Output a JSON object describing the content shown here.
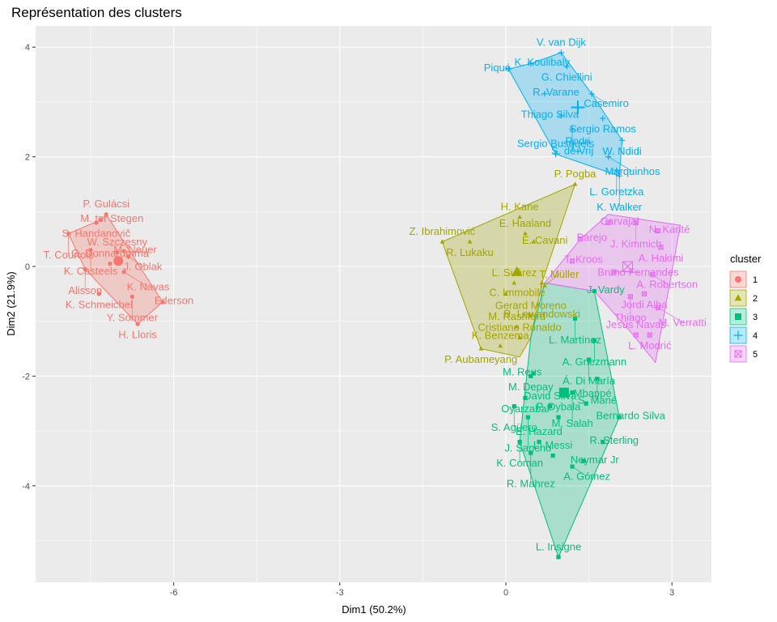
{
  "chart_data": {
    "type": "scatter",
    "title": "Représentation des clusters",
    "xlabel": "Dim1 (50.2%)",
    "ylabel": "Dim2 (21.9%)",
    "xlim": [
      -8.3,
      3.7
    ],
    "ylim": [
      -5.8,
      4.5
    ],
    "x_ticks": [
      -6,
      -3,
      0,
      3
    ],
    "x_tick_labels": [
      "-6",
      "-3",
      "0",
      "3"
    ],
    "y_ticks": [
      -4,
      -2,
      0,
      2,
      4
    ],
    "y_tick_labels": [
      "-4",
      "-2",
      "0",
      "2",
      "4"
    ],
    "grid": true,
    "legend_position": "right",
    "legend_title": "cluster",
    "clusters": [
      {
        "name": "1",
        "color": "#F8766D",
        "marker": "circle",
        "centroid": [
          -7.0,
          0.1
        ],
        "points": [
          {
            "label": "P. Gulácsi",
            "x": -7.22,
            "y": 0.95
          },
          {
            "label": "M. ter Stegen",
            "x": -7.32,
            "y": 0.85
          },
          {
            "label": "S. Handanovič",
            "x": -7.4,
            "y": 0.8
          },
          {
            "label": "T. Courtois",
            "x": -7.9,
            "y": 0.6
          },
          {
            "label": "M. Neuer",
            "x": -6.9,
            "y": 0.28
          },
          {
            "label": "K. Casteels",
            "x": -7.5,
            "y": 0.3
          },
          {
            "label": "W. Szczęsny",
            "x": -7.02,
            "y": 0.26
          },
          {
            "label": "J. Oblak",
            "x": -6.82,
            "y": 0.18
          },
          {
            "label": "Alisson",
            "x": -7.6,
            "y": -0.05
          },
          {
            "label": "G. Donnarumma",
            "x": -7.15,
            "y": 0.05
          },
          {
            "label": "K. Navas",
            "x": -6.9,
            "y": -0.1
          },
          {
            "label": "K. Schmeichel",
            "x": -7.35,
            "y": -0.5
          },
          {
            "label": "Ederson",
            "x": -6.2,
            "y": -0.65
          },
          {
            "label": "Y. Sommer",
            "x": -6.75,
            "y": -0.55
          },
          {
            "label": "H. Lloris",
            "x": -6.65,
            "y": -1.05
          }
        ],
        "hull": [
          [
            -7.22,
            0.95
          ],
          [
            -6.2,
            -0.65
          ],
          [
            -6.65,
            -1.05
          ],
          [
            -7.6,
            -0.05
          ],
          [
            -7.9,
            0.6
          ],
          [
            -7.32,
            0.85
          ]
        ]
      },
      {
        "name": "2",
        "color": "#A3A500",
        "marker": "triangle",
        "centroid": [
          0.2,
          -0.1
        ],
        "points": [
          {
            "label": "P. Pogba",
            "x": 1.25,
            "y": 1.5
          },
          {
            "label": "H. Kane",
            "x": 0.25,
            "y": 0.9
          },
          {
            "label": "E. Haaland",
            "x": 0.35,
            "y": 0.6
          },
          {
            "label": "Z. Ibrahimović",
            "x": -1.15,
            "y": 0.45
          },
          {
            "label": "R. Lukaku",
            "x": -0.65,
            "y": 0.45
          },
          {
            "label": "E. Cavani",
            "x": 0.5,
            "y": 0.45
          },
          {
            "label": "L. Suárez",
            "x": 0.15,
            "y": -0.3
          },
          {
            "label": "C. Immobile",
            "x": 0.0,
            "y": -0.5
          },
          {
            "label": "R. Lewandowski",
            "x": 0.65,
            "y": -0.3
          },
          {
            "label": "T. Müller",
            "x": 0.7,
            "y": -0.35
          },
          {
            "label": "K. Benzema",
            "x": -0.1,
            "y": -1.45
          },
          {
            "label": "P. Aubameyang",
            "x": -0.45,
            "y": -1.5
          },
          {
            "label": "Cristiano Ronaldo",
            "x": 0.25,
            "y": -1.3
          },
          {
            "label": "M. Rashford",
            "x": 0.2,
            "y": -1.1
          },
          {
            "label": "Gerard Moreno",
            "x": 0.45,
            "y": -0.9
          }
        ],
        "hull": [
          [
            1.25,
            1.5
          ],
          [
            0.65,
            -0.3
          ],
          [
            0.45,
            -1.3
          ],
          [
            0.25,
            -1.65
          ],
          [
            -0.45,
            -1.5
          ],
          [
            -1.15,
            0.45
          ]
        ]
      },
      {
        "name": "3",
        "color": "#00BF7D",
        "marker": "square",
        "centroid": [
          1.05,
          -2.3
        ],
        "points": [
          {
            "label": "J. Vardy",
            "x": 1.6,
            "y": -0.45
          },
          {
            "label": "L. Martínez",
            "x": 1.25,
            "y": -0.95
          },
          {
            "label": "A. Griezmann",
            "x": 1.6,
            "y": -1.35
          },
          {
            "label": "Á. Di María",
            "x": 1.5,
            "y": -1.7
          },
          {
            "label": "M. Reus",
            "x": 0.5,
            "y": -1.95
          },
          {
            "label": "S. Mané",
            "x": 1.65,
            "y": -2.05
          },
          {
            "label": "M. Depay",
            "x": 0.45,
            "y": -2.0
          },
          {
            "label": "Oyarzabal",
            "x": 0.35,
            "y": -2.4
          },
          {
            "label": "M. Salah",
            "x": 1.2,
            "y": -2.3
          },
          {
            "label": "S. Agüero",
            "x": 0.15,
            "y": -2.55
          },
          {
            "label": "David Silva",
            "x": 0.8,
            "y": -2.55
          },
          {
            "label": "K. Mbappé",
            "x": 1.45,
            "y": -2.5
          },
          {
            "label": "Bernardo Silva",
            "x": 2.05,
            "y": -2.75
          },
          {
            "label": "J. Sancho",
            "x": 0.4,
            "y": -2.75
          },
          {
            "label": "P. Dybala",
            "x": 0.95,
            "y": -2.75
          },
          {
            "label": "R. Sterling",
            "x": 1.75,
            "y": -3.2
          },
          {
            "label": "K. Coman",
            "x": 0.25,
            "y": -3.2
          },
          {
            "label": "E. Hazard",
            "x": 0.6,
            "y": -3.2
          },
          {
            "label": "R. Mahrez",
            "x": 0.45,
            "y": -3.4
          },
          {
            "label": "Neymar Jr",
            "x": 1.4,
            "y": -3.55
          },
          {
            "label": "L. Messi",
            "x": 0.85,
            "y": -3.45
          },
          {
            "label": "A. Gómez",
            "x": 1.2,
            "y": -3.65
          },
          {
            "label": "L. Insigne",
            "x": 0.95,
            "y": -5.3
          }
        ],
        "hull": [
          [
            0.7,
            -0.3
          ],
          [
            1.6,
            -0.45
          ],
          [
            2.05,
            -2.75
          ],
          [
            0.95,
            -5.3
          ],
          [
            0.25,
            -3.2
          ],
          [
            0.45,
            -1.3
          ]
        ]
      },
      {
        "name": "4",
        "color": "#00B0F6",
        "marker": "cross",
        "centroid": [
          1.3,
          2.9
        ],
        "points": [
          {
            "label": "V. van Dijk",
            "x": 1.0,
            "y": 3.9
          },
          {
            "label": "K. Koulibaly",
            "x": 0.45,
            "y": 3.7
          },
          {
            "label": "G. Chiellini",
            "x": 1.1,
            "y": 3.65
          },
          {
            "label": "Piqué",
            "x": 0.05,
            "y": 3.6
          },
          {
            "label": "R. Varane",
            "x": 0.7,
            "y": 3.15
          },
          {
            "label": "Casemiro",
            "x": 1.55,
            "y": 3.15
          },
          {
            "label": "Thiago Silva",
            "x": 1.0,
            "y": 2.75
          },
          {
            "label": "Sergio Ramos",
            "x": 1.75,
            "y": 2.7
          },
          {
            "label": "S. de Vrij",
            "x": 1.2,
            "y": 2.5
          },
          {
            "label": "W. Ndidi",
            "x": 2.1,
            "y": 2.3
          },
          {
            "label": "Sergio Busquets",
            "x": 0.9,
            "y": 2.05
          },
          {
            "label": "Rodri",
            "x": 1.3,
            "y": 2.1
          },
          {
            "label": "Marquinhos",
            "x": 1.85,
            "y": 2.0
          },
          {
            "label": "L. Goretzka",
            "x": 2.0,
            "y": 1.75
          },
          {
            "label": "K. Walker",
            "x": 2.05,
            "y": 1.65
          }
        ],
        "hull": [
          [
            1.0,
            3.9
          ],
          [
            1.55,
            3.15
          ],
          [
            2.1,
            2.3
          ],
          [
            2.05,
            1.65
          ],
          [
            0.9,
            2.05
          ],
          [
            0.05,
            3.6
          ],
          [
            0.45,
            3.7
          ]
        ]
      },
      {
        "name": "5",
        "color": "#E76BF3",
        "marker": "square-x",
        "centroid": [
          2.2,
          0.0
        ],
        "points": [
          {
            "label": "Carvajal",
            "x": 1.85,
            "y": 0.8
          },
          {
            "label": "J. Kimmich",
            "x": 2.35,
            "y": 0.8
          },
          {
            "label": "N. Kanté",
            "x": 2.75,
            "y": 0.65
          },
          {
            "label": "Parejo",
            "x": 1.35,
            "y": 0.5
          },
          {
            "label": "A. Hakimi",
            "x": 2.8,
            "y": 0.35
          },
          {
            "label": "T. Kroos",
            "x": 1.2,
            "y": 0.1
          },
          {
            "label": "Bruno Fernandes",
            "x": 1.95,
            "y": -0.1
          },
          {
            "label": "A. Robertson",
            "x": 2.65,
            "y": -0.15
          },
          {
            "label": "Jordi Alba",
            "x": 2.5,
            "y": -0.5
          },
          {
            "label": "Thiago",
            "x": 2.25,
            "y": -0.55
          },
          {
            "label": "M. Verratti",
            "x": 2.75,
            "y": -0.75
          },
          {
            "label": "L. Modrić",
            "x": 2.6,
            "y": -1.25
          },
          {
            "label": "Jesús Navas",
            "x": 2.35,
            "y": -1.25
          }
        ],
        "hull": [
          [
            1.35,
            0.5
          ],
          [
            1.85,
            0.95
          ],
          [
            3.15,
            0.75
          ],
          [
            2.7,
            -1.75
          ],
          [
            2.3,
            -1.25
          ],
          [
            1.6,
            -0.45
          ],
          [
            0.7,
            -0.3
          ]
        ]
      }
    ]
  }
}
